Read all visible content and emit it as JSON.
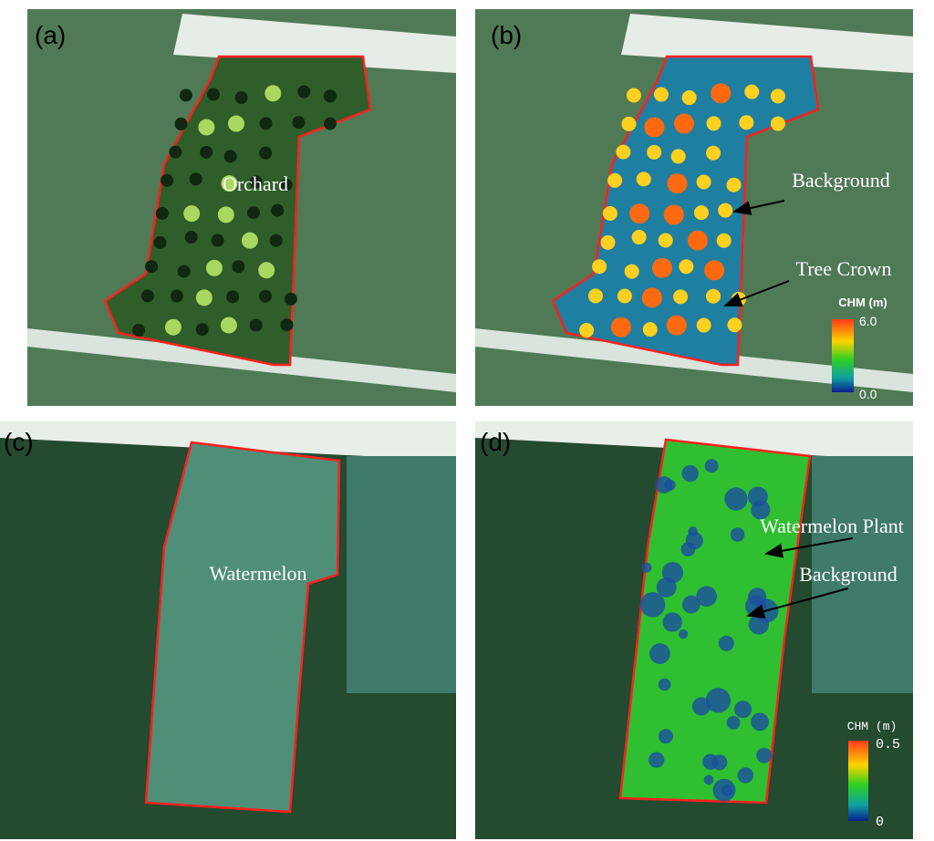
{
  "panels": [
    {
      "label": "(a)",
      "annotations": [
        "Orchard"
      ]
    },
    {
      "label": "(b)",
      "annotations": [
        "Background",
        "Tree Crown"
      ],
      "colorbar": {
        "title": "CHM (m)",
        "max": "6.0",
        "min": "0.0"
      }
    },
    {
      "label": "(c)",
      "annotations": [
        "Watermelon"
      ]
    },
    {
      "label": "(d)",
      "annotations": [
        "Watermelon Plant",
        "Background"
      ],
      "colorbar": {
        "title": "CHM (m)",
        "max": "0.5",
        "min": "0"
      }
    }
  ]
}
